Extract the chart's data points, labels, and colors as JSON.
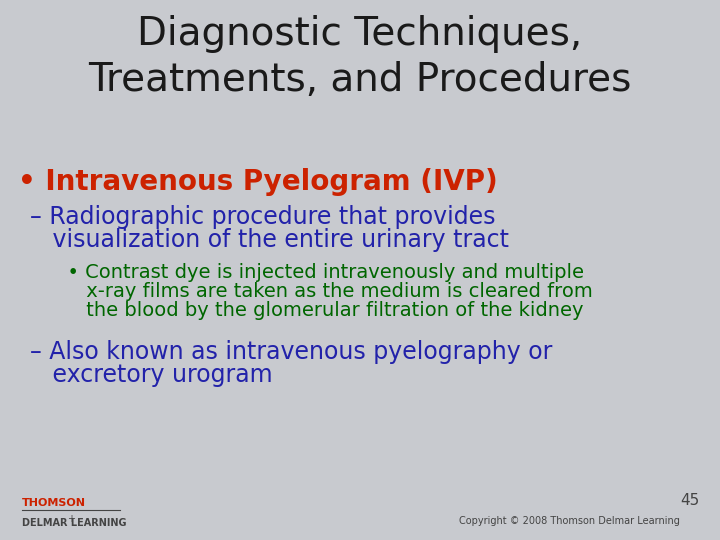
{
  "title_line1": "Diagnostic Techniques,",
  "title_line2": "Treatments, and Procedures",
  "title_color": "#1a1a1a",
  "title_fontsize": 28,
  "bg_color": "#c8cacf",
  "bullet1_text": "• Intravenous Pyelogram (IVP)",
  "bullet1_color": "#cc2200",
  "bullet1_fontsize": 20,
  "sub1_line1": "– Radiographic procedure that provides",
  "sub1_line2": "   visualization of the entire urinary tract",
  "sub1_color": "#2222aa",
  "sub1_fontsize": 17,
  "sub2_line1": "  • Contrast dye is injected intravenously and multiple",
  "sub2_line2": "     x-ray films are taken as the medium is cleared from",
  "sub2_line3": "     the blood by the glomerular filtration of the kidney",
  "sub2_color": "#006600",
  "sub2_fontsize": 14,
  "sub3_line1": "– Also known as intravenous pyelography or",
  "sub3_line2": "   excretory urogram",
  "sub3_color": "#2222aa",
  "sub3_fontsize": 17,
  "footer_left1": "THOMSON",
  "footer_left2": "DELMAR LEARNING",
  "footer_page": "45",
  "footer_copy": "Copyright © 2008 Thomson Delmar Learning",
  "footer_color": "#444444",
  "footer_color2": "#cc2200"
}
